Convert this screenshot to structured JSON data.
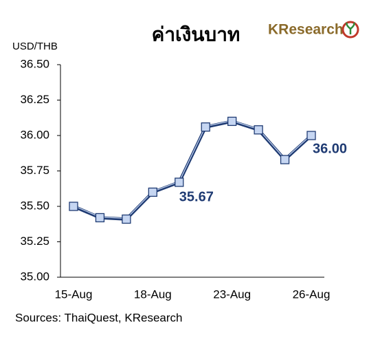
{
  "chart_data": {
    "type": "line",
    "title": "ค่าเงินบาท",
    "brand": "KResearch",
    "y_label": "USD/THB",
    "source": "Sources: ThaiQuest, KResearch",
    "categories": [
      "15-Aug",
      null,
      null,
      "18-Aug",
      null,
      null,
      "23-Aug",
      null,
      null,
      "26-Aug"
    ],
    "values": [
      35.5,
      35.42,
      35.41,
      35.6,
      35.67,
      36.06,
      36.1,
      36.04,
      35.83,
      36.0
    ],
    "value_labels": [
      null,
      null,
      null,
      null,
      "35.67",
      null,
      null,
      null,
      null,
      "36.00"
    ],
    "color": "#1f3b73",
    "marker_color": "#c6d6f2",
    "ylim": [
      35.0,
      36.5
    ],
    "yticks": [
      {
        "value": 35.0,
        "label": "35.00"
      },
      {
        "value": 35.25,
        "label": "35.25"
      },
      {
        "value": 35.5,
        "label": "35.50"
      },
      {
        "value": 35.75,
        "label": "35.75"
      },
      {
        "value": 36.0,
        "label": "36.00"
      },
      {
        "value": 36.25,
        "label": "36.25"
      },
      {
        "value": 36.5,
        "label": "36.50"
      }
    ],
    "grid": false
  }
}
